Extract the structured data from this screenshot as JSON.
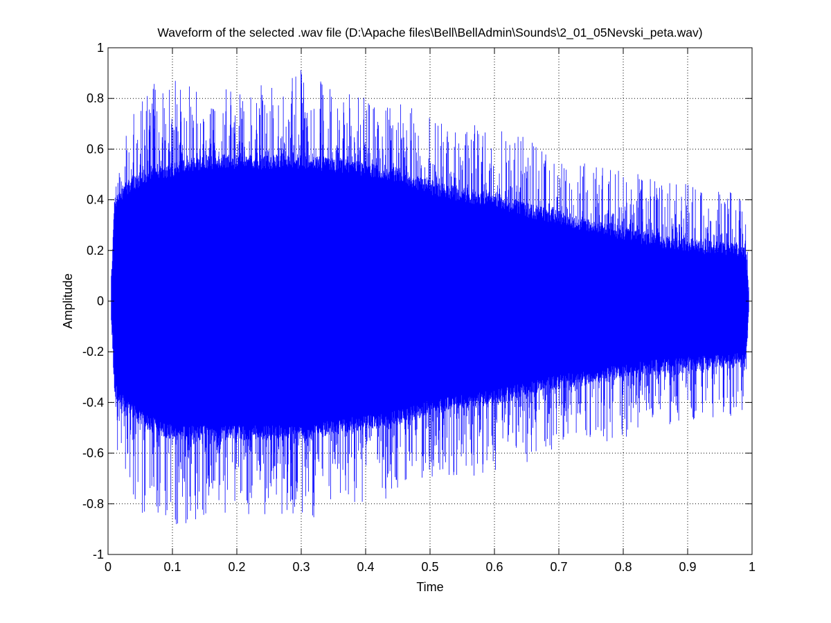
{
  "chart_data": {
    "type": "line",
    "title": "Waveform of the selected .wav file (D:\\Apache files\\Bell\\BellAdmin\\Sounds\\2_01_05Nevski_peta.wav)",
    "xlabel": "Time",
    "ylabel": "Amplitude",
    "xlim": [
      0,
      1
    ],
    "ylim": [
      -1,
      1
    ],
    "x_ticks": [
      "0",
      "0.1",
      "0.2",
      "0.3",
      "0.4",
      "0.5",
      "0.6",
      "0.7",
      "0.8",
      "0.9",
      "1"
    ],
    "y_ticks": [
      "1",
      "0.8",
      "0.6",
      "0.4",
      "0.2",
      "0",
      "-0.2",
      "-0.4",
      "-0.6",
      "-0.8",
      "-1"
    ],
    "x_tick_values": [
      0,
      0.1,
      0.2,
      0.3,
      0.4,
      0.5,
      0.6,
      0.7,
      0.8,
      0.9,
      1
    ],
    "y_tick_values": [
      1,
      0.8,
      0.6,
      0.4,
      0.2,
      0,
      -0.2,
      -0.4,
      -0.6,
      -0.8,
      -1
    ],
    "grid": true,
    "grid_style": "dotted",
    "series_color": "#0000ff",
    "signal_start": 0.005,
    "signal_end": 0.995,
    "envelope": {
      "x": [
        0.005,
        0.01,
        0.03,
        0.06,
        0.1,
        0.15,
        0.2,
        0.25,
        0.3,
        0.35,
        0.4,
        0.45,
        0.5,
        0.55,
        0.6,
        0.65,
        0.7,
        0.75,
        0.8,
        0.85,
        0.9,
        0.95,
        0.99,
        0.995
      ],
      "dense_upper": [
        0.05,
        0.38,
        0.45,
        0.5,
        0.52,
        0.55,
        0.55,
        0.55,
        0.55,
        0.54,
        0.52,
        0.5,
        0.45,
        0.42,
        0.4,
        0.36,
        0.33,
        0.3,
        0.27,
        0.24,
        0.22,
        0.21,
        0.2,
        0.03
      ],
      "dense_lower": [
        -0.05,
        -0.35,
        -0.42,
        -0.48,
        -0.52,
        -0.52,
        -0.52,
        -0.52,
        -0.52,
        -0.5,
        -0.48,
        -0.46,
        -0.42,
        -0.4,
        -0.38,
        -0.35,
        -0.32,
        -0.3,
        -0.28,
        -0.26,
        -0.25,
        -0.24,
        -0.23,
        -0.03
      ],
      "peak_upper": [
        0.1,
        0.48,
        0.68,
        0.88,
        0.9,
        0.84,
        0.86,
        0.86,
        0.93,
        0.88,
        0.8,
        0.78,
        0.74,
        0.72,
        0.7,
        0.65,
        0.58,
        0.55,
        0.52,
        0.48,
        0.47,
        0.44,
        0.42,
        0.05
      ],
      "peak_lower": [
        -0.1,
        -0.55,
        -0.72,
        -0.9,
        -0.93,
        -0.86,
        -0.85,
        -0.84,
        -0.87,
        -0.84,
        -0.79,
        -0.78,
        -0.72,
        -0.7,
        -0.68,
        -0.64,
        -0.6,
        -0.57,
        -0.55,
        -0.5,
        -0.47,
        -0.46,
        -0.45,
        -0.05
      ]
    }
  }
}
